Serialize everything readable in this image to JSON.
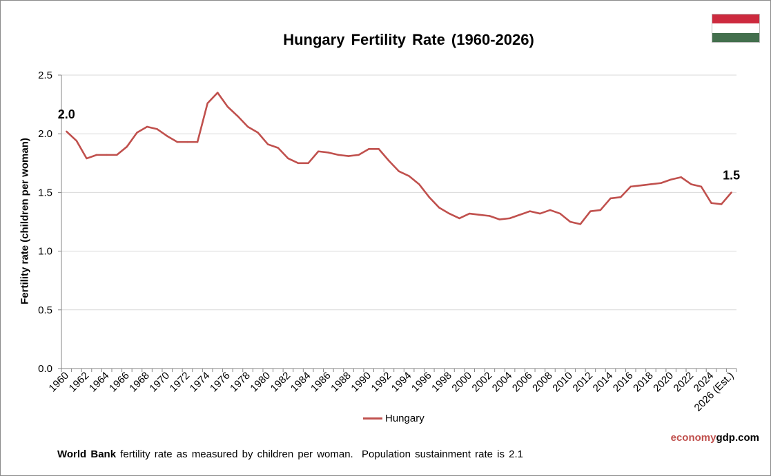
{
  "chart_data": {
    "type": "line",
    "title": "Hungary Fertility Rate (1960-2026)",
    "ylabel": "Fertility rate (children per woman)",
    "xlabel": "",
    "ylim": [
      0,
      2.5
    ],
    "yticks": [
      "0.0",
      "0.5",
      "1.0",
      "1.5",
      "2.0",
      "2.5"
    ],
    "grid": true,
    "legend_position": "bottom",
    "x": [
      "1960",
      "1961",
      "1962",
      "1963",
      "1964",
      "1965",
      "1966",
      "1967",
      "1968",
      "1969",
      "1970",
      "1971",
      "1972",
      "1973",
      "1974",
      "1975",
      "1976",
      "1977",
      "1978",
      "1979",
      "1980",
      "1981",
      "1982",
      "1983",
      "1984",
      "1985",
      "1986",
      "1987",
      "1988",
      "1989",
      "1990",
      "1991",
      "1992",
      "1993",
      "1994",
      "1995",
      "1996",
      "1997",
      "1998",
      "1999",
      "2000",
      "2001",
      "2002",
      "2003",
      "2004",
      "2005",
      "2006",
      "2007",
      "2008",
      "2009",
      "2010",
      "2011",
      "2012",
      "2013",
      "2014",
      "2015",
      "2016",
      "2017",
      "2018",
      "2019",
      "2020",
      "2021",
      "2022",
      "2023",
      "2024",
      "2025",
      "2026 (Est.)"
    ],
    "x_tick_labels": [
      "1960",
      "",
      "1962",
      "",
      "1964",
      "",
      "1966",
      "",
      "1968",
      "",
      "1970",
      "",
      "1972",
      "",
      "1974",
      "",
      "1976",
      "",
      "1978",
      "",
      "1980",
      "",
      "1982",
      "",
      "1984",
      "",
      "1986",
      "",
      "1988",
      "",
      "1990",
      "",
      "1992",
      "",
      "1994",
      "",
      "1996",
      "",
      "1998",
      "",
      "2000",
      "",
      "2002",
      "",
      "2004",
      "",
      "2006",
      "",
      "2008",
      "",
      "2010",
      "",
      "2012",
      "",
      "2014",
      "",
      "2016",
      "",
      "2018",
      "",
      "2020",
      "",
      "2022",
      "",
      "2024",
      "",
      "2026 (Est.)"
    ],
    "series": [
      {
        "name": "Hungary",
        "color": "#c0504d",
        "values": [
          2.02,
          1.94,
          1.79,
          1.82,
          1.82,
          1.82,
          1.89,
          2.01,
          2.06,
          2.04,
          1.98,
          1.93,
          1.93,
          1.93,
          2.26,
          2.35,
          2.23,
          2.15,
          2.06,
          2.01,
          1.91,
          1.88,
          1.79,
          1.75,
          1.75,
          1.85,
          1.84,
          1.82,
          1.81,
          1.82,
          1.87,
          1.87,
          1.77,
          1.68,
          1.64,
          1.57,
          1.46,
          1.37,
          1.32,
          1.28,
          1.32,
          1.31,
          1.3,
          1.27,
          1.28,
          1.31,
          1.34,
          1.32,
          1.35,
          1.32,
          1.25,
          1.23,
          1.34,
          1.35,
          1.45,
          1.46,
          1.55,
          1.56,
          1.57,
          1.58,
          1.61,
          1.63,
          1.57,
          1.55,
          1.41,
          1.4,
          1.5
        ]
      }
    ],
    "annotations": [
      {
        "label": "2.0",
        "index": 0
      },
      {
        "label": "1.5",
        "index": 66
      }
    ]
  },
  "brand": {
    "part1": "economy",
    "part2": "gdp",
    "part3": ".com",
    "color1": "#c0504d",
    "color2": "#000000"
  },
  "footer": {
    "bold": "World Bank",
    "text": " fertility rate as measured by children per woman.  Population sustainment rate is 2.1"
  },
  "flag": {
    "colors": [
      "#cd2a3e",
      "#ffffff",
      "#436f4d"
    ]
  }
}
